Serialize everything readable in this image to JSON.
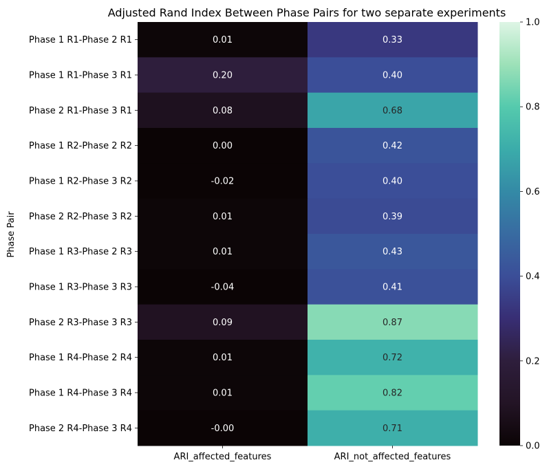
{
  "chart_data": {
    "type": "heatmap",
    "title": "Adjusted Rand Index Between Phase Pairs for two separate experiments",
    "xlabel": "",
    "ylabel": "Phase Pair",
    "columns": [
      "ARI_affected_features",
      "ARI_not_affected_features"
    ],
    "rows": [
      "Phase 1 R1-Phase 2 R1",
      "Phase 1 R1-Phase 3 R1",
      "Phase 2 R1-Phase 3 R1",
      "Phase 1 R2-Phase 2 R2",
      "Phase 1 R2-Phase 3 R2",
      "Phase 2 R2-Phase 3 R2",
      "Phase 1 R3-Phase 2 R3",
      "Phase 1 R3-Phase 3 R3",
      "Phase 2 R3-Phase 3 R3",
      "Phase 1 R4-Phase 2 R4",
      "Phase 1 R4-Phase 3 R4",
      "Phase 2 R4-Phase 3 R4"
    ],
    "labels": [
      [
        "0.01",
        "0.33"
      ],
      [
        "0.20",
        "0.40"
      ],
      [
        "0.08",
        "0.68"
      ],
      [
        "0.00",
        "0.42"
      ],
      [
        "-0.02",
        "0.40"
      ],
      [
        "0.01",
        "0.39"
      ],
      [
        "0.01",
        "0.43"
      ],
      [
        "-0.04",
        "0.41"
      ],
      [
        "0.09",
        "0.87"
      ],
      [
        "0.01",
        "0.72"
      ],
      [
        "0.01",
        "0.82"
      ],
      [
        "-0.00",
        "0.71"
      ]
    ],
    "values": [
      [
        0.01,
        0.33
      ],
      [
        0.2,
        0.4
      ],
      [
        0.08,
        0.68
      ],
      [
        0.0,
        0.42
      ],
      [
        -0.02,
        0.4
      ],
      [
        0.01,
        0.39
      ],
      [
        0.01,
        0.43
      ],
      [
        -0.04,
        0.41
      ],
      [
        0.09,
        0.87
      ],
      [
        0.01,
        0.72
      ],
      [
        0.01,
        0.82
      ],
      [
        -0.0,
        0.71
      ]
    ],
    "colorbar": {
      "range": [
        0,
        1
      ],
      "ticks": [
        "0.0",
        "0.2",
        "0.4",
        "0.6",
        "0.8",
        "1.0"
      ],
      "colormap": "mako"
    }
  }
}
